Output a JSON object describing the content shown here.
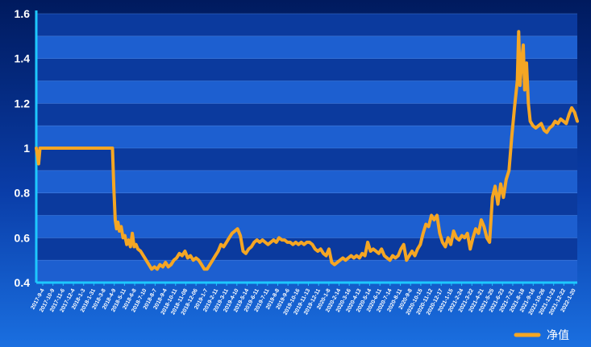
{
  "chart_data": {
    "type": "line",
    "title": "",
    "xlabel": "",
    "ylabel": "",
    "ylim": [
      0.4,
      1.6
    ],
    "yticks": [
      0.4,
      0.6,
      0.8,
      1,
      1.2,
      1.4,
      1.6
    ],
    "grid": "horizontal",
    "legend_position": "bottom-right",
    "colors": {
      "line": "#f5a623",
      "axis": "#1ec8ff",
      "band_light": "#1d5fd0",
      "band_dark": "#0b3a9e",
      "text": "#ffffff"
    },
    "x_tick_labels": [
      "2017-9-4",
      "2017-10-9",
      "2017-11-6",
      "2017-12-4",
      "2018-1-3",
      "2018-1-31",
      "2018-3-8",
      "2018-4-9",
      "2018-5-11",
      "2018-6-8",
      "2018-7-10",
      "2018-8-7",
      "2018-9-4",
      "2018-10-11",
      "2018-11-08",
      "2018-12-06",
      "2019-1-7",
      "2019-2-11",
      "2019-3-11",
      "2019-4-10",
      "2019-5-14",
      "2019-6-11",
      "2019-7-11",
      "2019-8-8",
      "2019-9-6",
      "2019-10-16",
      "2019-11-13",
      "2019-12-11",
      "2020-1-8",
      "2020-2-14",
      "2020-3-16",
      "2020-4-13",
      "2020-5-14",
      "2020-6-11",
      "2020-7-14",
      "2020-8-11",
      "2020-9-8",
      "2020-10-15",
      "2020-11-12",
      "2020-12-17",
      "2021-1-15",
      "2021-2-24",
      "2021-3-22",
      "2021-4-21",
      "2021-5-25",
      "2021-6-23",
      "2021-7-21",
      "2021-8-18",
      "2021-9-16",
      "2021-10-26",
      "2021-11-23",
      "2021-12-22",
      "2022-1-20"
    ],
    "series": [
      {
        "name": "净值",
        "points": [
          [
            0,
            1.0
          ],
          [
            0.3,
            0.96
          ],
          [
            0.5,
            0.93
          ],
          [
            0.8,
            1.0
          ],
          [
            1.5,
            1.0
          ],
          [
            3,
            1.0
          ],
          [
            5,
            1.0
          ],
          [
            7,
            1.0
          ],
          [
            9,
            1.0
          ],
          [
            11,
            1.0
          ],
          [
            13,
            1.0
          ],
          [
            15,
            1.0
          ],
          [
            16.5,
            1.0
          ],
          [
            16.8,
            0.82
          ],
          [
            17.1,
            0.68
          ],
          [
            17.4,
            0.64
          ],
          [
            17.7,
            0.67
          ],
          [
            18.0,
            0.63
          ],
          [
            18.4,
            0.65
          ],
          [
            18.8,
            0.6
          ],
          [
            19.2,
            0.61
          ],
          [
            19.6,
            0.57
          ],
          [
            20.0,
            0.59
          ],
          [
            20.4,
            0.56
          ],
          [
            20.8,
            0.62
          ],
          [
            21.2,
            0.56
          ],
          [
            21.6,
            0.57
          ],
          [
            22.0,
            0.55
          ],
          [
            22.6,
            0.54
          ],
          [
            23.2,
            0.52
          ],
          [
            23.8,
            0.5
          ],
          [
            24.4,
            0.48
          ],
          [
            25.0,
            0.46
          ],
          [
            25.6,
            0.47
          ],
          [
            26.2,
            0.46
          ],
          [
            26.8,
            0.48
          ],
          [
            27.4,
            0.47
          ],
          [
            28.0,
            0.49
          ],
          [
            28.6,
            0.47
          ],
          [
            29.2,
            0.48
          ],
          [
            29.8,
            0.5
          ],
          [
            30.4,
            0.51
          ],
          [
            31.0,
            0.53
          ],
          [
            31.6,
            0.52
          ],
          [
            32.2,
            0.54
          ],
          [
            32.8,
            0.51
          ],
          [
            33.4,
            0.52
          ],
          [
            34.0,
            0.5
          ],
          [
            34.6,
            0.51
          ],
          [
            35.2,
            0.5
          ],
          [
            35.8,
            0.48
          ],
          [
            36.4,
            0.46
          ],
          [
            37.0,
            0.46
          ],
          [
            37.6,
            0.48
          ],
          [
            38.2,
            0.5
          ],
          [
            38.8,
            0.52
          ],
          [
            39.4,
            0.54
          ],
          [
            40.0,
            0.57
          ],
          [
            40.6,
            0.56
          ],
          [
            41.2,
            0.58
          ],
          [
            41.8,
            0.6
          ],
          [
            42.4,
            0.62
          ],
          [
            43.0,
            0.63
          ],
          [
            43.6,
            0.64
          ],
          [
            44.2,
            0.61
          ],
          [
            44.8,
            0.54
          ],
          [
            45.4,
            0.53
          ],
          [
            46.0,
            0.55
          ],
          [
            46.6,
            0.56
          ],
          [
            47.2,
            0.58
          ],
          [
            47.8,
            0.59
          ],
          [
            48.4,
            0.58
          ],
          [
            49.0,
            0.59
          ],
          [
            49.6,
            0.58
          ],
          [
            50.2,
            0.57
          ],
          [
            50.8,
            0.58
          ],
          [
            51.4,
            0.59
          ],
          [
            52.0,
            0.58
          ],
          [
            52.6,
            0.6
          ],
          [
            53.2,
            0.59
          ],
          [
            53.8,
            0.59
          ],
          [
            54.4,
            0.58
          ],
          [
            55.0,
            0.58
          ],
          [
            55.6,
            0.57
          ],
          [
            56.2,
            0.58
          ],
          [
            56.8,
            0.57
          ],
          [
            57.4,
            0.58
          ],
          [
            58.0,
            0.57
          ],
          [
            58.6,
            0.58
          ],
          [
            59.2,
            0.58
          ],
          [
            59.8,
            0.57
          ],
          [
            60.4,
            0.55
          ],
          [
            61.0,
            0.54
          ],
          [
            61.6,
            0.55
          ],
          [
            62.2,
            0.53
          ],
          [
            62.8,
            0.52
          ],
          [
            63.4,
            0.55
          ],
          [
            64.0,
            0.49
          ],
          [
            64.6,
            0.48
          ],
          [
            65.2,
            0.49
          ],
          [
            65.8,
            0.5
          ],
          [
            66.4,
            0.51
          ],
          [
            67.0,
            0.5
          ],
          [
            67.6,
            0.51
          ],
          [
            68.2,
            0.52
          ],
          [
            68.8,
            0.51
          ],
          [
            69.4,
            0.52
          ],
          [
            70.0,
            0.51
          ],
          [
            70.6,
            0.53
          ],
          [
            71.2,
            0.52
          ],
          [
            71.8,
            0.58
          ],
          [
            72.4,
            0.54
          ],
          [
            73.0,
            0.55
          ],
          [
            73.6,
            0.54
          ],
          [
            74.2,
            0.53
          ],
          [
            74.8,
            0.55
          ],
          [
            75.4,
            0.52
          ],
          [
            76.0,
            0.51
          ],
          [
            76.6,
            0.5
          ],
          [
            77.2,
            0.52
          ],
          [
            77.8,
            0.51
          ],
          [
            78.4,
            0.52
          ],
          [
            79.0,
            0.55
          ],
          [
            79.6,
            0.57
          ],
          [
            80.2,
            0.5
          ],
          [
            80.8,
            0.52
          ],
          [
            81.4,
            0.54
          ],
          [
            82.0,
            0.52
          ],
          [
            82.6,
            0.55
          ],
          [
            83.2,
            0.57
          ],
          [
            83.8,
            0.62
          ],
          [
            84.4,
            0.66
          ],
          [
            85.0,
            0.65
          ],
          [
            85.6,
            0.7
          ],
          [
            86.2,
            0.68
          ],
          [
            86.8,
            0.7
          ],
          [
            87.4,
            0.62
          ],
          [
            88.0,
            0.58
          ],
          [
            88.6,
            0.56
          ],
          [
            89.2,
            0.6
          ],
          [
            89.8,
            0.57
          ],
          [
            90.4,
            0.63
          ],
          [
            91.0,
            0.6
          ],
          [
            91.6,
            0.59
          ],
          [
            92.2,
            0.61
          ],
          [
            92.8,
            0.6
          ],
          [
            93.4,
            0.62
          ],
          [
            94.0,
            0.55
          ],
          [
            94.6,
            0.6
          ],
          [
            95.2,
            0.64
          ],
          [
            95.8,
            0.62
          ],
          [
            96.4,
            0.68
          ],
          [
            97.0,
            0.65
          ],
          [
            97.6,
            0.6
          ],
          [
            98.2,
            0.58
          ],
          [
            98.8,
            0.78
          ],
          [
            99.4,
            0.83
          ],
          [
            100.0,
            0.75
          ],
          [
            100.6,
            0.84
          ],
          [
            101.2,
            0.78
          ],
          [
            101.8,
            0.86
          ],
          [
            102.4,
            0.9
          ],
          [
            103.0,
            1.05
          ],
          [
            103.6,
            1.18
          ],
          [
            104.2,
            1.3
          ],
          [
            104.5,
            1.52
          ],
          [
            104.8,
            1.28
          ],
          [
            105.2,
            1.4
          ],
          [
            105.5,
            1.46
          ],
          [
            105.8,
            1.26
          ],
          [
            106.2,
            1.38
          ],
          [
            106.6,
            1.2
          ],
          [
            107.0,
            1.12
          ],
          [
            107.6,
            1.1
          ],
          [
            108.2,
            1.09
          ],
          [
            108.8,
            1.1
          ],
          [
            109.4,
            1.11
          ],
          [
            110.0,
            1.08
          ],
          [
            110.6,
            1.07
          ],
          [
            111.2,
            1.09
          ],
          [
            111.8,
            1.1
          ],
          [
            112.4,
            1.12
          ],
          [
            113.0,
            1.11
          ],
          [
            113.6,
            1.13
          ],
          [
            114.2,
            1.12
          ],
          [
            114.8,
            1.11
          ],
          [
            115.4,
            1.15
          ],
          [
            116.0,
            1.18
          ],
          [
            116.6,
            1.16
          ],
          [
            117.2,
            1.12
          ]
        ]
      }
    ]
  }
}
